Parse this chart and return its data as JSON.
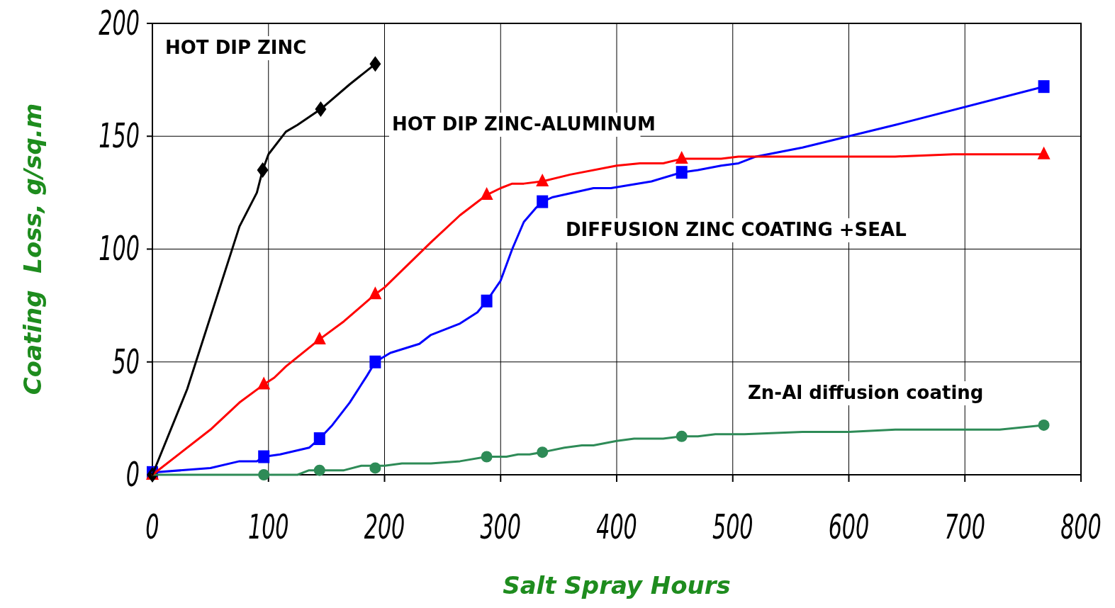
{
  "chart_data": {
    "type": "line",
    "xlabel": "Salt Spray Hours",
    "ylabel": "Coating  Loss, g/sq.m",
    "xlim": [
      0,
      800
    ],
    "ylim": [
      0,
      200
    ],
    "xticks": [
      0,
      100,
      200,
      300,
      400,
      500,
      600,
      700,
      800
    ],
    "yticks": [
      0,
      50,
      100,
      150,
      200
    ],
    "grid": true,
    "legend": false,
    "series": [
      {
        "name": "HOT DIP ZINC",
        "color": "#000000",
        "marker": "none",
        "x": [
          0,
          30,
          75,
          90,
          95,
          100,
          115,
          125,
          145,
          170,
          192
        ],
        "values": [
          0,
          38,
          110,
          125,
          135,
          142,
          152,
          155,
          162,
          173,
          182
        ]
      },
      {
        "type": "scatter",
        "color": "#000000",
        "marker": "diamond",
        "x": [
          0,
          95,
          145,
          192
        ],
        "values": [
          0,
          135,
          162,
          182
        ]
      },
      {
        "name": "HOT DIP ZINC-ALUMINUM",
        "color": "#ff0000",
        "marker": "none",
        "x": [
          0,
          50,
          75,
          96,
          105,
          115,
          144,
          165,
          192,
          200,
          240,
          265,
          288,
          300,
          310,
          320,
          336,
          360,
          400,
          420,
          440,
          456,
          490,
          505,
          640,
          690,
          768
        ],
        "values": [
          0,
          20,
          32,
          40,
          43,
          48,
          60,
          68,
          80,
          83,
          103,
          115,
          124,
          127,
          129,
          129,
          130,
          133,
          137,
          138,
          138,
          140,
          140,
          141,
          141,
          142,
          142
        ]
      },
      {
        "type": "scatter",
        "color": "#ff0000",
        "marker": "triangle",
        "x": [
          0,
          96,
          144,
          192,
          288,
          336,
          456,
          768
        ],
        "values": [
          0,
          40,
          60,
          80,
          124,
          130,
          140,
          142
        ]
      },
      {
        "name": "DIFFUSION ZINC  COATING +SEAL",
        "color": "#0000ff",
        "marker": "none",
        "x": [
          0,
          50,
          75,
          90,
          96,
          110,
          135,
          144,
          155,
          170,
          185,
          192,
          205,
          230,
          240,
          265,
          280,
          288,
          300,
          310,
          320,
          330,
          336,
          345,
          380,
          395,
          430,
          456,
          470,
          490,
          505,
          520,
          560,
          600,
          640,
          768
        ],
        "values": [
          1,
          3,
          6,
          6,
          8,
          9,
          12,
          16,
          22,
          32,
          44,
          50,
          54,
          58,
          62,
          67,
          72,
          77,
          86,
          100,
          112,
          118,
          121,
          123,
          127,
          127,
          130,
          134,
          135,
          137,
          138,
          141,
          145,
          150,
          155,
          172
        ]
      },
      {
        "type": "scatter",
        "color": "#0000ff",
        "marker": "square",
        "x": [
          0,
          96,
          144,
          192,
          288,
          336,
          456,
          768
        ],
        "values": [
          1,
          8,
          16,
          50,
          77,
          121,
          134,
          172
        ]
      },
      {
        "name": "Zn-Al diffusion coating",
        "color": "#2e8b57",
        "marker": "none",
        "x": [
          0,
          96,
          125,
          135,
          165,
          180,
          200,
          215,
          240,
          265,
          288,
          305,
          315,
          325,
          336,
          355,
          370,
          380,
          400,
          415,
          440,
          456,
          470,
          485,
          510,
          560,
          600,
          640,
          730,
          768
        ],
        "values": [
          0,
          0,
          0,
          2,
          2,
          4,
          4,
          5,
          5,
          6,
          8,
          8,
          9,
          9,
          10,
          12,
          13,
          13,
          15,
          16,
          16,
          17,
          17,
          18,
          18,
          19,
          19,
          20,
          20,
          22
        ]
      },
      {
        "type": "scatter",
        "color": "#2e8b57",
        "marker": "circle",
        "x": [
          96,
          144,
          192,
          288,
          336,
          456,
          768
        ],
        "values": [
          0,
          2,
          3,
          8,
          10,
          17,
          22
        ]
      }
    ]
  }
}
